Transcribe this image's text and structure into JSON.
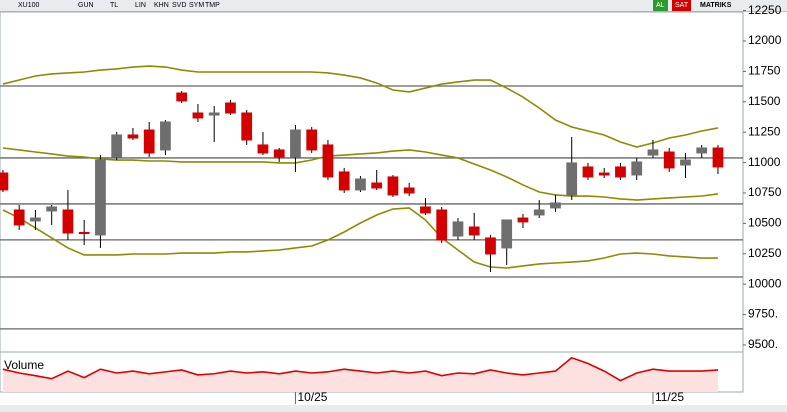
{
  "toolbar": {
    "symbol": "XU100",
    "buttons": [
      "GUN",
      "TL",
      "LIN",
      "KHN",
      "SVD",
      "SYM",
      "TMP"
    ],
    "buy": "AL",
    "sell": "SAT",
    "brand": "MATRIKS"
  },
  "chart_data": {
    "type": "candlestick",
    "x": [
      0,
      1,
      2,
      3,
      4,
      5,
      6,
      7,
      8,
      9,
      10,
      11,
      12,
      13,
      14,
      15,
      16,
      17,
      18,
      19,
      20,
      21,
      22,
      23,
      24,
      25,
      26,
      27,
      28,
      29,
      30,
      31,
      32,
      33,
      34,
      35,
      36,
      37,
      38,
      39,
      40,
      41,
      42,
      43,
      44
    ],
    "xlim": [
      -0.18,
      45.54
    ],
    "xticks": [
      {
        "value": 18,
        "label": "10/25"
      },
      {
        "value": 40,
        "label": "11/25"
      }
    ],
    "ylim": [
      9442,
      12255
    ],
    "yticks": [
      {
        "value": 9500,
        "label": "9500."
      },
      {
        "value": 9750,
        "label": "9750."
      },
      10000,
      10250,
      10500,
      10750,
      11000,
      11250,
      11500,
      11750,
      12000,
      12250
    ],
    "up_color": "#6e6e6e",
    "down_color": "#d40000",
    "open": [
      10914,
      10610,
      10520,
      10602,
      10610,
      10425,
      10405,
      11046,
      11227,
      11268,
      11104,
      11572,
      11408,
      11391,
      11490,
      11408,
      11145,
      11104,
      11046,
      11268,
      11145,
      10923,
      10775,
      10832,
      10882,
      10791,
      10635,
      10610,
      10396,
      10470,
      10380,
      10298,
      10544,
      10569,
      10627,
      10734,
      10964,
      10914,
      10964,
      10898,
      11062,
      11087,
      10980,
      11079,
      11120
    ],
    "high": [
      10939,
      10651,
      10610,
      10651,
      10775,
      10528,
      11062,
      11252,
      11285,
      11334,
      11350,
      11589,
      11482,
      11465,
      11515,
      11433,
      11252,
      11120,
      11309,
      11293,
      11186,
      10956,
      10890,
      10939,
      10898,
      10832,
      10709,
      10635,
      10544,
      10586,
      10405,
      10528,
      10577,
      10692,
      10734,
      11211,
      10997,
      10956,
      10997,
      11038,
      11186,
      11120,
      11079,
      11145,
      11145
    ],
    "low": [
      10758,
      10446,
      10446,
      10487,
      10363,
      10322,
      10298,
      11021,
      11186,
      11046,
      11062,
      11490,
      11334,
      11169,
      11391,
      11145,
      11062,
      11005,
      10923,
      11079,
      10857,
      10750,
      10758,
      10775,
      10717,
      10725,
      10569,
      10339,
      10363,
      10363,
      10100,
      10158,
      10462,
      10544,
      10594,
      10692,
      10857,
      10873,
      10857,
      10857,
      11038,
      10923,
      10873,
      11038,
      10906
    ],
    "close": [
      10775,
      10487,
      10544,
      10635,
      10421,
      10421,
      11021,
      11227,
      11202,
      11079,
      11334,
      11507,
      11367,
      11408,
      11408,
      11186,
      11079,
      11046,
      11268,
      11104,
      10882,
      10775,
      10865,
      10791,
      10734,
      10750,
      10586,
      10363,
      10512,
      10405,
      10248,
      10528,
      10512,
      10610,
      10668,
      10997,
      10882,
      10898,
      10882,
      11005,
      11104,
      10956,
      11021,
      11120,
      10964
    ],
    "lines": [
      {
        "color": "#8c8c00",
        "values": [
          11646,
          11679,
          11712,
          11729,
          11737,
          11745,
          11761,
          11770,
          11786,
          11794,
          11786,
          11761,
          11745,
          11745,
          11745,
          11745,
          11745,
          11745,
          11745,
          11745,
          11737,
          11720,
          11696,
          11655,
          11597,
          11581,
          11613,
          11646,
          11663,
          11679,
          11679,
          11613,
          11539,
          11449,
          11350,
          11293,
          11260,
          11227,
          11169,
          11128,
          11161,
          11202,
          11227,
          11260,
          11285
        ]
      },
      {
        "color": "#8c8c00",
        "values": [
          11120,
          11104,
          11087,
          11071,
          11054,
          11046,
          11030,
          11021,
          11021,
          11013,
          11013,
          11005,
          11005,
          11005,
          11005,
          11005,
          11005,
          10997,
          10997,
          11021,
          11054,
          11062,
          11071,
          11079,
          11095,
          11104,
          11087,
          11062,
          11038,
          10988,
          10939,
          10882,
          10816,
          10758,
          10734,
          10725,
          10725,
          10717,
          10701,
          10692,
          10701,
          10709,
          10717,
          10725,
          10742
        ]
      },
      {
        "color": "#8c8c00",
        "values": [
          10610,
          10544,
          10462,
          10380,
          10298,
          10240,
          10240,
          10240,
          10248,
          10248,
          10248,
          10256,
          10256,
          10256,
          10265,
          10265,
          10273,
          10281,
          10298,
          10314,
          10363,
          10429,
          10503,
          10569,
          10618,
          10627,
          10528,
          10380,
          10281,
          10182,
          10141,
          10133,
          10150,
          10166,
          10174,
          10182,
          10191,
          10215,
          10248,
          10256,
          10248,
          10232,
          10224,
          10215,
          10215
        ]
      }
    ],
    "hlines": [
      11630,
      11038,
      10660,
      10364,
      10059,
      9632
    ],
    "hline_color": "#666666",
    "volume": {
      "label": "Volume",
      "color": "#e00000",
      "ylim": [
        0,
        100
      ],
      "values": [
        60,
        50,
        43,
        35,
        55,
        38,
        60,
        50,
        55,
        48,
        53,
        58,
        45,
        48,
        55,
        50,
        53,
        48,
        55,
        50,
        53,
        60,
        55,
        50,
        55,
        50,
        55,
        43,
        50,
        48,
        58,
        50,
        45,
        50,
        55,
        90,
        75,
        55,
        30,
        50,
        60,
        55,
        55,
        55,
        58
      ]
    }
  }
}
